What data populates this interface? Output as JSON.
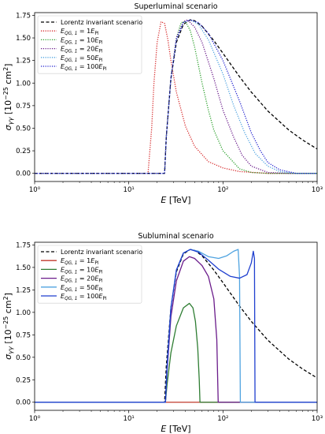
{
  "chart_data": [
    {
      "type": "line",
      "title": "Superluminal scenario",
      "xlabel": "E [TeV]",
      "ylabel": "σγγ [10⁻²⁵ cm²]",
      "xscale": "log",
      "xlim": [
        1,
        1000
      ],
      "ylim": [
        -0.09,
        1.78
      ],
      "xticks": [
        "10⁰",
        "10¹",
        "10²",
        "10³"
      ],
      "yticks": [
        "0.00",
        "0.25",
        "0.50",
        "0.75",
        "1.00",
        "1.25",
        "1.50",
        "1.75"
      ],
      "legend_position": "top-left",
      "series": [
        {
          "name": "Lorentz invariant scenario",
          "color": "#000000",
          "style": "dashed",
          "x": [
            1,
            24,
            25,
            28,
            32,
            38,
            45,
            50,
            60,
            80,
            100,
            150,
            200,
            300,
            500,
            700,
            1000
          ],
          "y": [
            0,
            0,
            0.4,
            1.05,
            1.45,
            1.65,
            1.7,
            1.69,
            1.63,
            1.47,
            1.33,
            1.07,
            0.9,
            0.69,
            0.48,
            0.37,
            0.27
          ]
        },
        {
          "name": "E_QG,1 = 1E_Pl",
          "color": "#d62728",
          "style": "dotted",
          "x": [
            1,
            16,
            17.5,
            18.5,
            20,
            22,
            24,
            26,
            28,
            32,
            40,
            50,
            70,
            100,
            150,
            300,
            1000
          ],
          "y": [
            0,
            0,
            0.5,
            1.0,
            1.45,
            1.68,
            1.66,
            1.48,
            1.25,
            0.9,
            0.52,
            0.3,
            0.13,
            0.06,
            0.02,
            0.0,
            0.0
          ]
        },
        {
          "name": "E_QG,1 = 10E_Pl",
          "color": "#2ca02c",
          "style": "dotted",
          "x": [
            1,
            24,
            25,
            28,
            32,
            36,
            40,
            45,
            50,
            60,
            70,
            80,
            100,
            150,
            200,
            300,
            1000
          ],
          "y": [
            0,
            0,
            0.4,
            1.05,
            1.5,
            1.67,
            1.68,
            1.58,
            1.4,
            1.0,
            0.7,
            0.48,
            0.25,
            0.05,
            0.01,
            0.0,
            0.0
          ]
        },
        {
          "name": "E_QG,1 = 20E_Pl",
          "color": "#6a1b8a",
          "style": "dotted",
          "x": [
            1,
            24,
            25,
            28,
            32,
            38,
            42,
            50,
            60,
            80,
            100,
            130,
            160,
            200,
            300,
            500,
            1000
          ],
          "y": [
            0,
            0,
            0.4,
            1.05,
            1.5,
            1.68,
            1.7,
            1.62,
            1.45,
            1.05,
            0.7,
            0.4,
            0.2,
            0.08,
            0.01,
            0.0,
            0.0
          ]
        },
        {
          "name": "E_QG,1 = 50E_Pl",
          "color": "#4fa3e0",
          "style": "dotted",
          "x": [
            1,
            24,
            25,
            28,
            32,
            38,
            45,
            55,
            70,
            100,
            130,
            170,
            220,
            300,
            400,
            600,
            1000
          ],
          "y": [
            0,
            0,
            0.4,
            1.05,
            1.48,
            1.67,
            1.7,
            1.65,
            1.48,
            1.1,
            0.75,
            0.45,
            0.22,
            0.08,
            0.02,
            0.0,
            0.0
          ]
        },
        {
          "name": "E_QG,1 = 100E_Pl",
          "color": "#1f1fcf",
          "style": "dotted",
          "x": [
            1,
            24,
            25,
            28,
            32,
            38,
            45,
            55,
            70,
            100,
            150,
            200,
            250,
            300,
            400,
            600,
            1000
          ],
          "y": [
            0,
            0,
            0.4,
            1.05,
            1.48,
            1.67,
            1.7,
            1.67,
            1.55,
            1.25,
            0.8,
            0.45,
            0.25,
            0.12,
            0.04,
            0.0,
            0.0
          ]
        }
      ]
    },
    {
      "type": "line",
      "title": "Subluminal scenario",
      "xlabel": "E [TeV]",
      "ylabel": "σγγ [10⁻²⁵ cm²]",
      "xscale": "log",
      "xlim": [
        1,
        1000
      ],
      "ylim": [
        -0.09,
        1.78
      ],
      "xticks": [
        "10⁰",
        "10¹",
        "10²",
        "10³"
      ],
      "yticks": [
        "0.00",
        "0.25",
        "0.50",
        "0.75",
        "1.00",
        "1.25",
        "1.50",
        "1.75"
      ],
      "legend_position": "top-left",
      "series": [
        {
          "name": "Lorentz invariant scenario",
          "color": "#000000",
          "style": "dashed",
          "x": [
            1,
            24,
            25,
            28,
            32,
            38,
            45,
            50,
            60,
            80,
            100,
            150,
            200,
            300,
            500,
            700,
            1000
          ],
          "y": [
            0,
            0,
            0.4,
            1.05,
            1.45,
            1.65,
            1.7,
            1.69,
            1.63,
            1.47,
            1.33,
            1.07,
            0.9,
            0.69,
            0.48,
            0.37,
            0.27
          ]
        },
        {
          "name": "E_QG,1 = 1E_Pl",
          "color": "#c0392b",
          "style": "solid",
          "x": [
            1,
            1000
          ],
          "y": [
            0,
            0
          ]
        },
        {
          "name": "E_QG,1 = 10E_Pl",
          "color": "#2e7d32",
          "style": "solid",
          "x": [
            1,
            24.5,
            25.5,
            28,
            32,
            38,
            44,
            48,
            51,
            54,
            56,
            57,
            1000
          ],
          "y": [
            0,
            0,
            0.2,
            0.55,
            0.85,
            1.05,
            1.1,
            1.05,
            0.9,
            0.6,
            0.25,
            0,
            0
          ]
        },
        {
          "name": "E_QG,1 = 20E_Pl",
          "color": "#6a1b8a",
          "style": "solid",
          "x": [
            1,
            24.5,
            25.5,
            28,
            32,
            38,
            44,
            50,
            60,
            70,
            80,
            86,
            89,
            1000
          ],
          "y": [
            0,
            0,
            0.35,
            0.95,
            1.35,
            1.57,
            1.62,
            1.6,
            1.52,
            1.4,
            1.15,
            0.7,
            0,
            0
          ]
        },
        {
          "name": "E_QG,1 = 50E_Pl",
          "color": "#4fa3e0",
          "style": "solid",
          "x": [
            1,
            24.5,
            25.5,
            28,
            32,
            38,
            45,
            55,
            70,
            90,
            110,
            130,
            145,
            150,
            153,
            1000
          ],
          "y": [
            0,
            0,
            0.4,
            1.05,
            1.47,
            1.66,
            1.7,
            1.68,
            1.62,
            1.6,
            1.63,
            1.68,
            1.7,
            1.4,
            0,
            0
          ]
        },
        {
          "name": "E_QG,1 = 100E_Pl",
          "color": "#1f3fcf",
          "style": "solid",
          "x": [
            1,
            24.5,
            25.5,
            28,
            32,
            38,
            45,
            55,
            70,
            90,
            120,
            150,
            180,
            200,
            210,
            216,
            219,
            1000
          ],
          "y": [
            0,
            0,
            0.4,
            1.05,
            1.47,
            1.66,
            1.7,
            1.67,
            1.58,
            1.48,
            1.4,
            1.38,
            1.42,
            1.55,
            1.68,
            1.6,
            0,
            0
          ]
        }
      ]
    }
  ]
}
